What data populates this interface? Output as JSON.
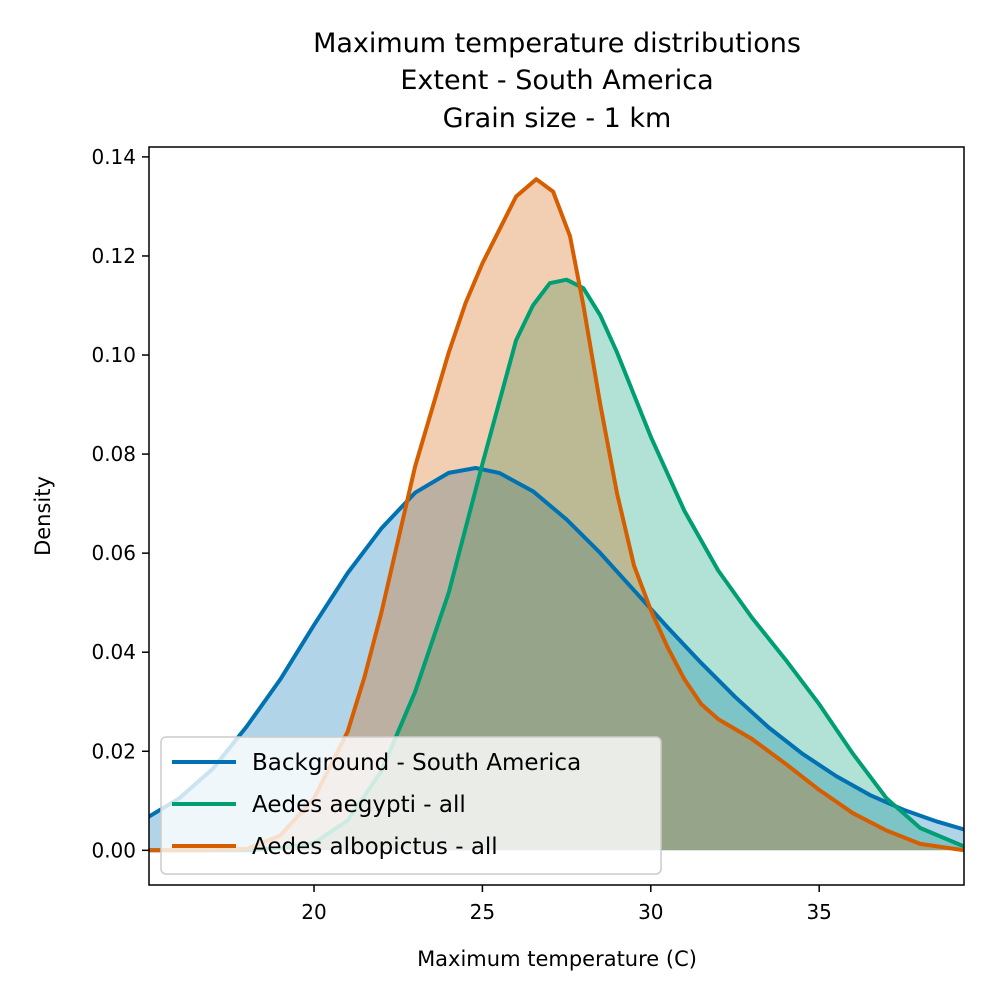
{
  "chart_data": {
    "type": "area",
    "title": [
      "Maximum temperature distributions",
      "Extent - South America",
      "Grain size - 1 km"
    ],
    "xlabel": "Maximum temperature (C)",
    "ylabel": "Density",
    "xlim": [
      15.1,
      39.3
    ],
    "ylim": [
      -0.007,
      0.142
    ],
    "xticks": [
      20,
      25,
      30,
      35
    ],
    "yticks": [
      0.0,
      0.02,
      0.04,
      0.06,
      0.08,
      0.1,
      0.12,
      0.14
    ],
    "xtick_labels": [
      "20",
      "25",
      "30",
      "35"
    ],
    "ytick_labels": [
      "0.00",
      "0.02",
      "0.04",
      "0.06",
      "0.08",
      "0.10",
      "0.12",
      "0.14"
    ],
    "grid": false,
    "legend_position": "lower-left",
    "series": [
      {
        "name": "Background - South America",
        "color": "#0072b2",
        "points": [
          [
            15.1,
            0.0068
          ],
          [
            16.0,
            0.0105
          ],
          [
            17.0,
            0.0165
          ],
          [
            18.0,
            0.025
          ],
          [
            19.0,
            0.0345
          ],
          [
            20.0,
            0.0455
          ],
          [
            21.0,
            0.056
          ],
          [
            22.0,
            0.065
          ],
          [
            23.0,
            0.0722
          ],
          [
            24.0,
            0.0762
          ],
          [
            24.8,
            0.0772
          ],
          [
            25.5,
            0.0762
          ],
          [
            26.5,
            0.0725
          ],
          [
            27.5,
            0.0668
          ],
          [
            28.5,
            0.06
          ],
          [
            29.5,
            0.0525
          ],
          [
            30.5,
            0.045
          ],
          [
            31.5,
            0.0378
          ],
          [
            32.5,
            0.031
          ],
          [
            33.5,
            0.0248
          ],
          [
            34.5,
            0.0195
          ],
          [
            35.5,
            0.015
          ],
          [
            36.5,
            0.0112
          ],
          [
            37.5,
            0.0082
          ],
          [
            38.5,
            0.0058
          ],
          [
            39.3,
            0.0042
          ]
        ]
      },
      {
        "name": "Aedes aegypti - all",
        "color": "#009e73",
        "points": [
          [
            15.1,
            0.0
          ],
          [
            18.0,
            0.0
          ],
          [
            19.0,
            0.0005
          ],
          [
            20.0,
            0.0015
          ],
          [
            21.0,
            0.006
          ],
          [
            22.0,
            0.016
          ],
          [
            23.0,
            0.032
          ],
          [
            24.0,
            0.052
          ],
          [
            25.0,
            0.078
          ],
          [
            26.0,
            0.103
          ],
          [
            26.5,
            0.11
          ],
          [
            27.0,
            0.1145
          ],
          [
            27.5,
            0.1152
          ],
          [
            28.0,
            0.1135
          ],
          [
            28.5,
            0.108
          ],
          [
            29.0,
            0.1005
          ],
          [
            30.0,
            0.0835
          ],
          [
            31.0,
            0.0685
          ],
          [
            32.0,
            0.0565
          ],
          [
            33.0,
            0.047
          ],
          [
            34.0,
            0.0385
          ],
          [
            35.0,
            0.0295
          ],
          [
            36.0,
            0.0195
          ],
          [
            37.0,
            0.0105
          ],
          [
            38.0,
            0.0045
          ],
          [
            39.3,
            0.0008
          ]
        ]
      },
      {
        "name": "Aedes albopictus - all",
        "color": "#d55e00",
        "points": [
          [
            15.1,
            0.0
          ],
          [
            17.0,
            0.0
          ],
          [
            18.0,
            0.0003
          ],
          [
            19.0,
            0.003
          ],
          [
            20.0,
            0.0105
          ],
          [
            21.0,
            0.024
          ],
          [
            21.5,
            0.035
          ],
          [
            22.0,
            0.048
          ],
          [
            23.0,
            0.0775
          ],
          [
            24.0,
            0.1005
          ],
          [
            24.5,
            0.1105
          ],
          [
            25.0,
            0.1185
          ],
          [
            26.0,
            0.132
          ],
          [
            26.6,
            0.1355
          ],
          [
            27.1,
            0.133
          ],
          [
            27.6,
            0.124
          ],
          [
            28.0,
            0.11
          ],
          [
            28.5,
            0.09
          ],
          [
            29.0,
            0.072
          ],
          [
            29.5,
            0.0575
          ],
          [
            30.0,
            0.0485
          ],
          [
            30.5,
            0.041
          ],
          [
            31.0,
            0.0345
          ],
          [
            31.5,
            0.0295
          ],
          [
            32.0,
            0.0265
          ],
          [
            33.0,
            0.0225
          ],
          [
            34.0,
            0.0175
          ],
          [
            35.0,
            0.0122
          ],
          [
            36.0,
            0.0075
          ],
          [
            37.0,
            0.004
          ],
          [
            38.0,
            0.0013
          ],
          [
            39.3,
            0.0
          ]
        ]
      }
    ]
  }
}
